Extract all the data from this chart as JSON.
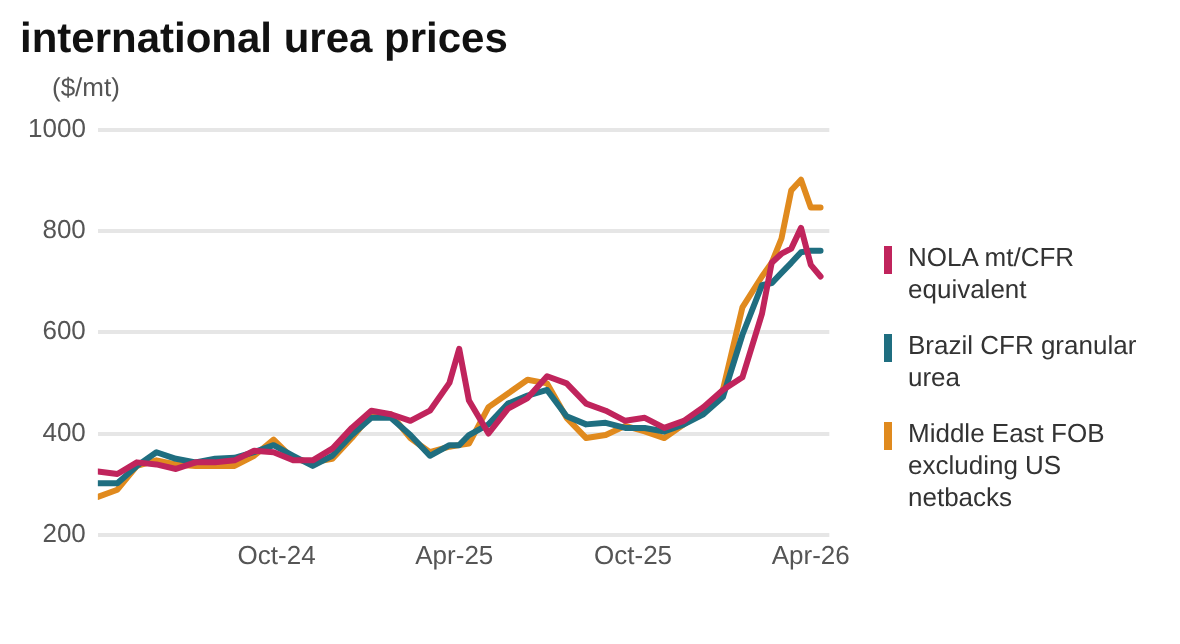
{
  "chart_data": {
    "type": "line",
    "title": "international urea prices",
    "ylabel": "($/mt)",
    "x": [
      "2024-04-01",
      "2024-04-21",
      "2024-05-11",
      "2024-05-31",
      "2024-06-20",
      "2024-07-10",
      "2024-07-30",
      "2024-08-19",
      "2024-09-08",
      "2024-09-28",
      "2024-10-18",
      "2024-11-07",
      "2024-11-27",
      "2024-12-17",
      "2025-01-06",
      "2025-01-26",
      "2025-02-15",
      "2025-03-07",
      "2025-03-27",
      "2025-04-06",
      "2025-04-16",
      "2025-05-06",
      "2025-05-26",
      "2025-06-15",
      "2025-07-05",
      "2025-07-25",
      "2025-08-14",
      "2025-09-03",
      "2025-09-23",
      "2025-10-13",
      "2025-11-02",
      "2025-11-22",
      "2025-12-12",
      "2026-01-01",
      "2026-01-21",
      "2026-02-10",
      "2026-02-20",
      "2026-03-02",
      "2026-03-12",
      "2026-03-22",
      "2026-04-01",
      "2026-04-11"
    ],
    "series": [
      {
        "name": "NOLA mt/CFR equivalent",
        "color": "#c0245c",
        "values": [
          325,
          320,
          343,
          339,
          330,
          343,
          343,
          347,
          366,
          363,
          347,
          347,
          370,
          411,
          445,
          438,
          425,
          445,
          500,
          567,
          465,
          400,
          449,
          470,
          513,
          499,
          459,
          445,
          425,
          431,
          411,
          425,
          452,
          486,
          511,
          636,
          737,
          755,
          765,
          806,
          733,
          710
        ]
      },
      {
        "name": "Brazil CFR granular urea",
        "color": "#1f6e80",
        "values": [
          302,
          302,
          336,
          363,
          350,
          343,
          350,
          352,
          363,
          377,
          356,
          336,
          356,
          397,
          431,
          431,
          397,
          356,
          377,
          377,
          397,
          418,
          459,
          475,
          486,
          434,
          418,
          421,
          411,
          411,
          404,
          418,
          438,
          472,
          595,
          693,
          697,
          717,
          737,
          758,
          761,
          761
        ]
      },
      {
        "name": "Middle East FOB excluding US netbacks",
        "color": "#e08a1e",
        "values": [
          275,
          289,
          336,
          347,
          339,
          336,
          336,
          336,
          356,
          388,
          350,
          343,
          350,
          391,
          438,
          438,
          391,
          363,
          374,
          377,
          380,
          452,
          479,
          506,
          499,
          431,
          391,
          397,
          415,
          404,
          391,
          418,
          445,
          486,
          649,
          710,
          737,
          785,
          880,
          901,
          846,
          846
        ]
      }
    ],
    "xlim": [
      "2024-04-01",
      "2026-04-20"
    ],
    "xticks": [
      {
        "value": "2024-10-01",
        "label": "Oct-24"
      },
      {
        "value": "2025-04-01",
        "label": "Apr-25"
      },
      {
        "value": "2025-10-01",
        "label": "Oct-25"
      },
      {
        "value": "2026-04-01",
        "label": "Apr-26"
      }
    ],
    "ylim": [
      200,
      1000
    ],
    "yticks": [
      200,
      400,
      600,
      800,
      1000
    ],
    "grid": "y",
    "legend": "right",
    "marker": "none",
    "line_style": "solid"
  }
}
